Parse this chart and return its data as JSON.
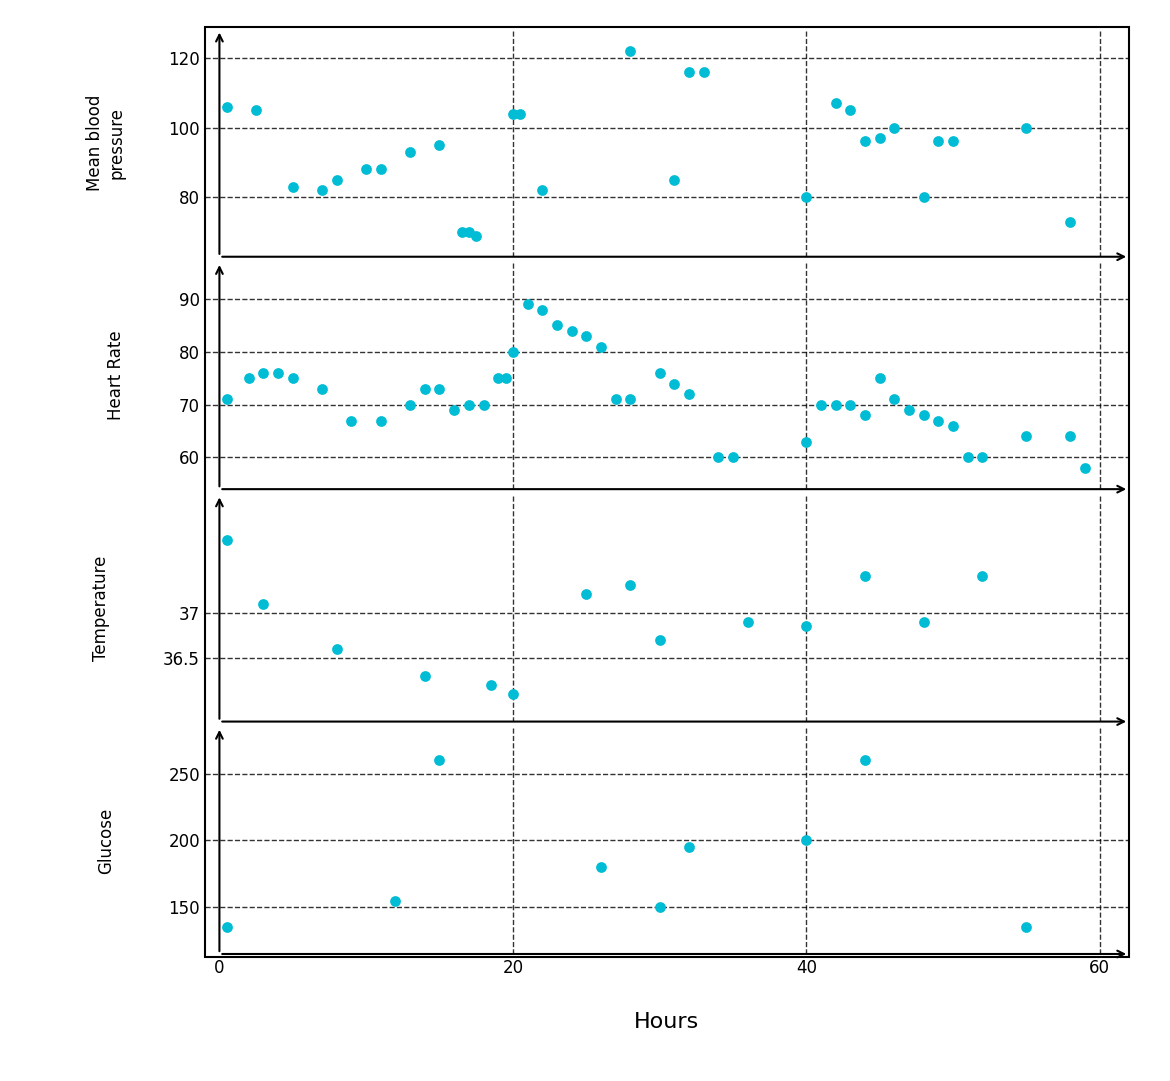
{
  "xlabel": "Hours",
  "dot_color": "#00BCD4",
  "dot_size": 60,
  "xlim": [
    -1,
    62
  ],
  "xticks": [
    0,
    20,
    40,
    60
  ],
  "vlines": [
    20,
    40,
    60
  ],
  "mbp_ylabel": "Mean blood\npressure",
  "mbp_yticks": [
    80,
    100,
    120
  ],
  "mbp_ylim": [
    63,
    128
  ],
  "mbp_x": [
    0.5,
    2.5,
    5,
    7,
    8,
    10,
    11,
    13,
    15,
    16.5,
    17,
    17.5,
    20,
    20.5,
    22,
    28,
    31,
    32,
    33,
    40,
    42,
    43,
    44,
    45,
    46,
    48,
    49,
    50,
    55,
    58
  ],
  "mbp_y": [
    106,
    105,
    83,
    82,
    85,
    88,
    88,
    93,
    95,
    70,
    70,
    69,
    104,
    104,
    82,
    122,
    85,
    116,
    116,
    80,
    107,
    105,
    96,
    97,
    100,
    80,
    96,
    96,
    100,
    73
  ],
  "hr_ylabel": "Heart Rate",
  "hr_yticks": [
    60,
    70,
    80,
    90
  ],
  "hr_ylim": [
    54,
    97
  ],
  "hr_x": [
    0.5,
    2,
    3,
    4,
    5,
    7,
    9,
    11,
    13,
    14,
    15,
    16,
    17,
    18,
    19,
    19.5,
    20,
    21,
    22,
    23,
    24,
    25,
    26,
    27,
    28,
    30,
    31,
    32,
    34,
    35,
    40,
    41,
    42,
    43,
    44,
    45,
    46,
    47,
    48,
    49,
    50,
    51,
    52,
    55,
    58,
    59
  ],
  "hr_y": [
    71,
    75,
    76,
    76,
    75,
    73,
    67,
    67,
    70,
    73,
    73,
    69,
    70,
    70,
    75,
    75,
    80,
    89,
    88,
    85,
    84,
    83,
    81,
    71,
    71,
    76,
    74,
    72,
    60,
    60,
    63,
    70,
    70,
    70,
    68,
    75,
    71,
    69,
    68,
    67,
    66,
    60,
    60,
    64,
    64,
    58
  ],
  "temp_ylabel": "Temperature",
  "temp_yticks": [
    36.5,
    37
  ],
  "temp_ylim": [
    35.8,
    38.3
  ],
  "temp_x": [
    0.5,
    3,
    8,
    14,
    18.5,
    20,
    25,
    28,
    30,
    36,
    40,
    44,
    48,
    52
  ],
  "temp_y": [
    37.8,
    37.1,
    36.6,
    36.3,
    36.2,
    36.1,
    37.2,
    37.3,
    36.7,
    36.9,
    36.85,
    37.4,
    36.9,
    37.4
  ],
  "gluc_ylabel": "Glucose",
  "gluc_yticks": [
    150,
    200,
    250
  ],
  "gluc_ylim": [
    115,
    285
  ],
  "gluc_x": [
    0.5,
    12,
    15,
    26,
    30,
    32,
    40,
    44,
    55
  ],
  "gluc_y": [
    135,
    155,
    260,
    180,
    150,
    195,
    200,
    260,
    135
  ]
}
